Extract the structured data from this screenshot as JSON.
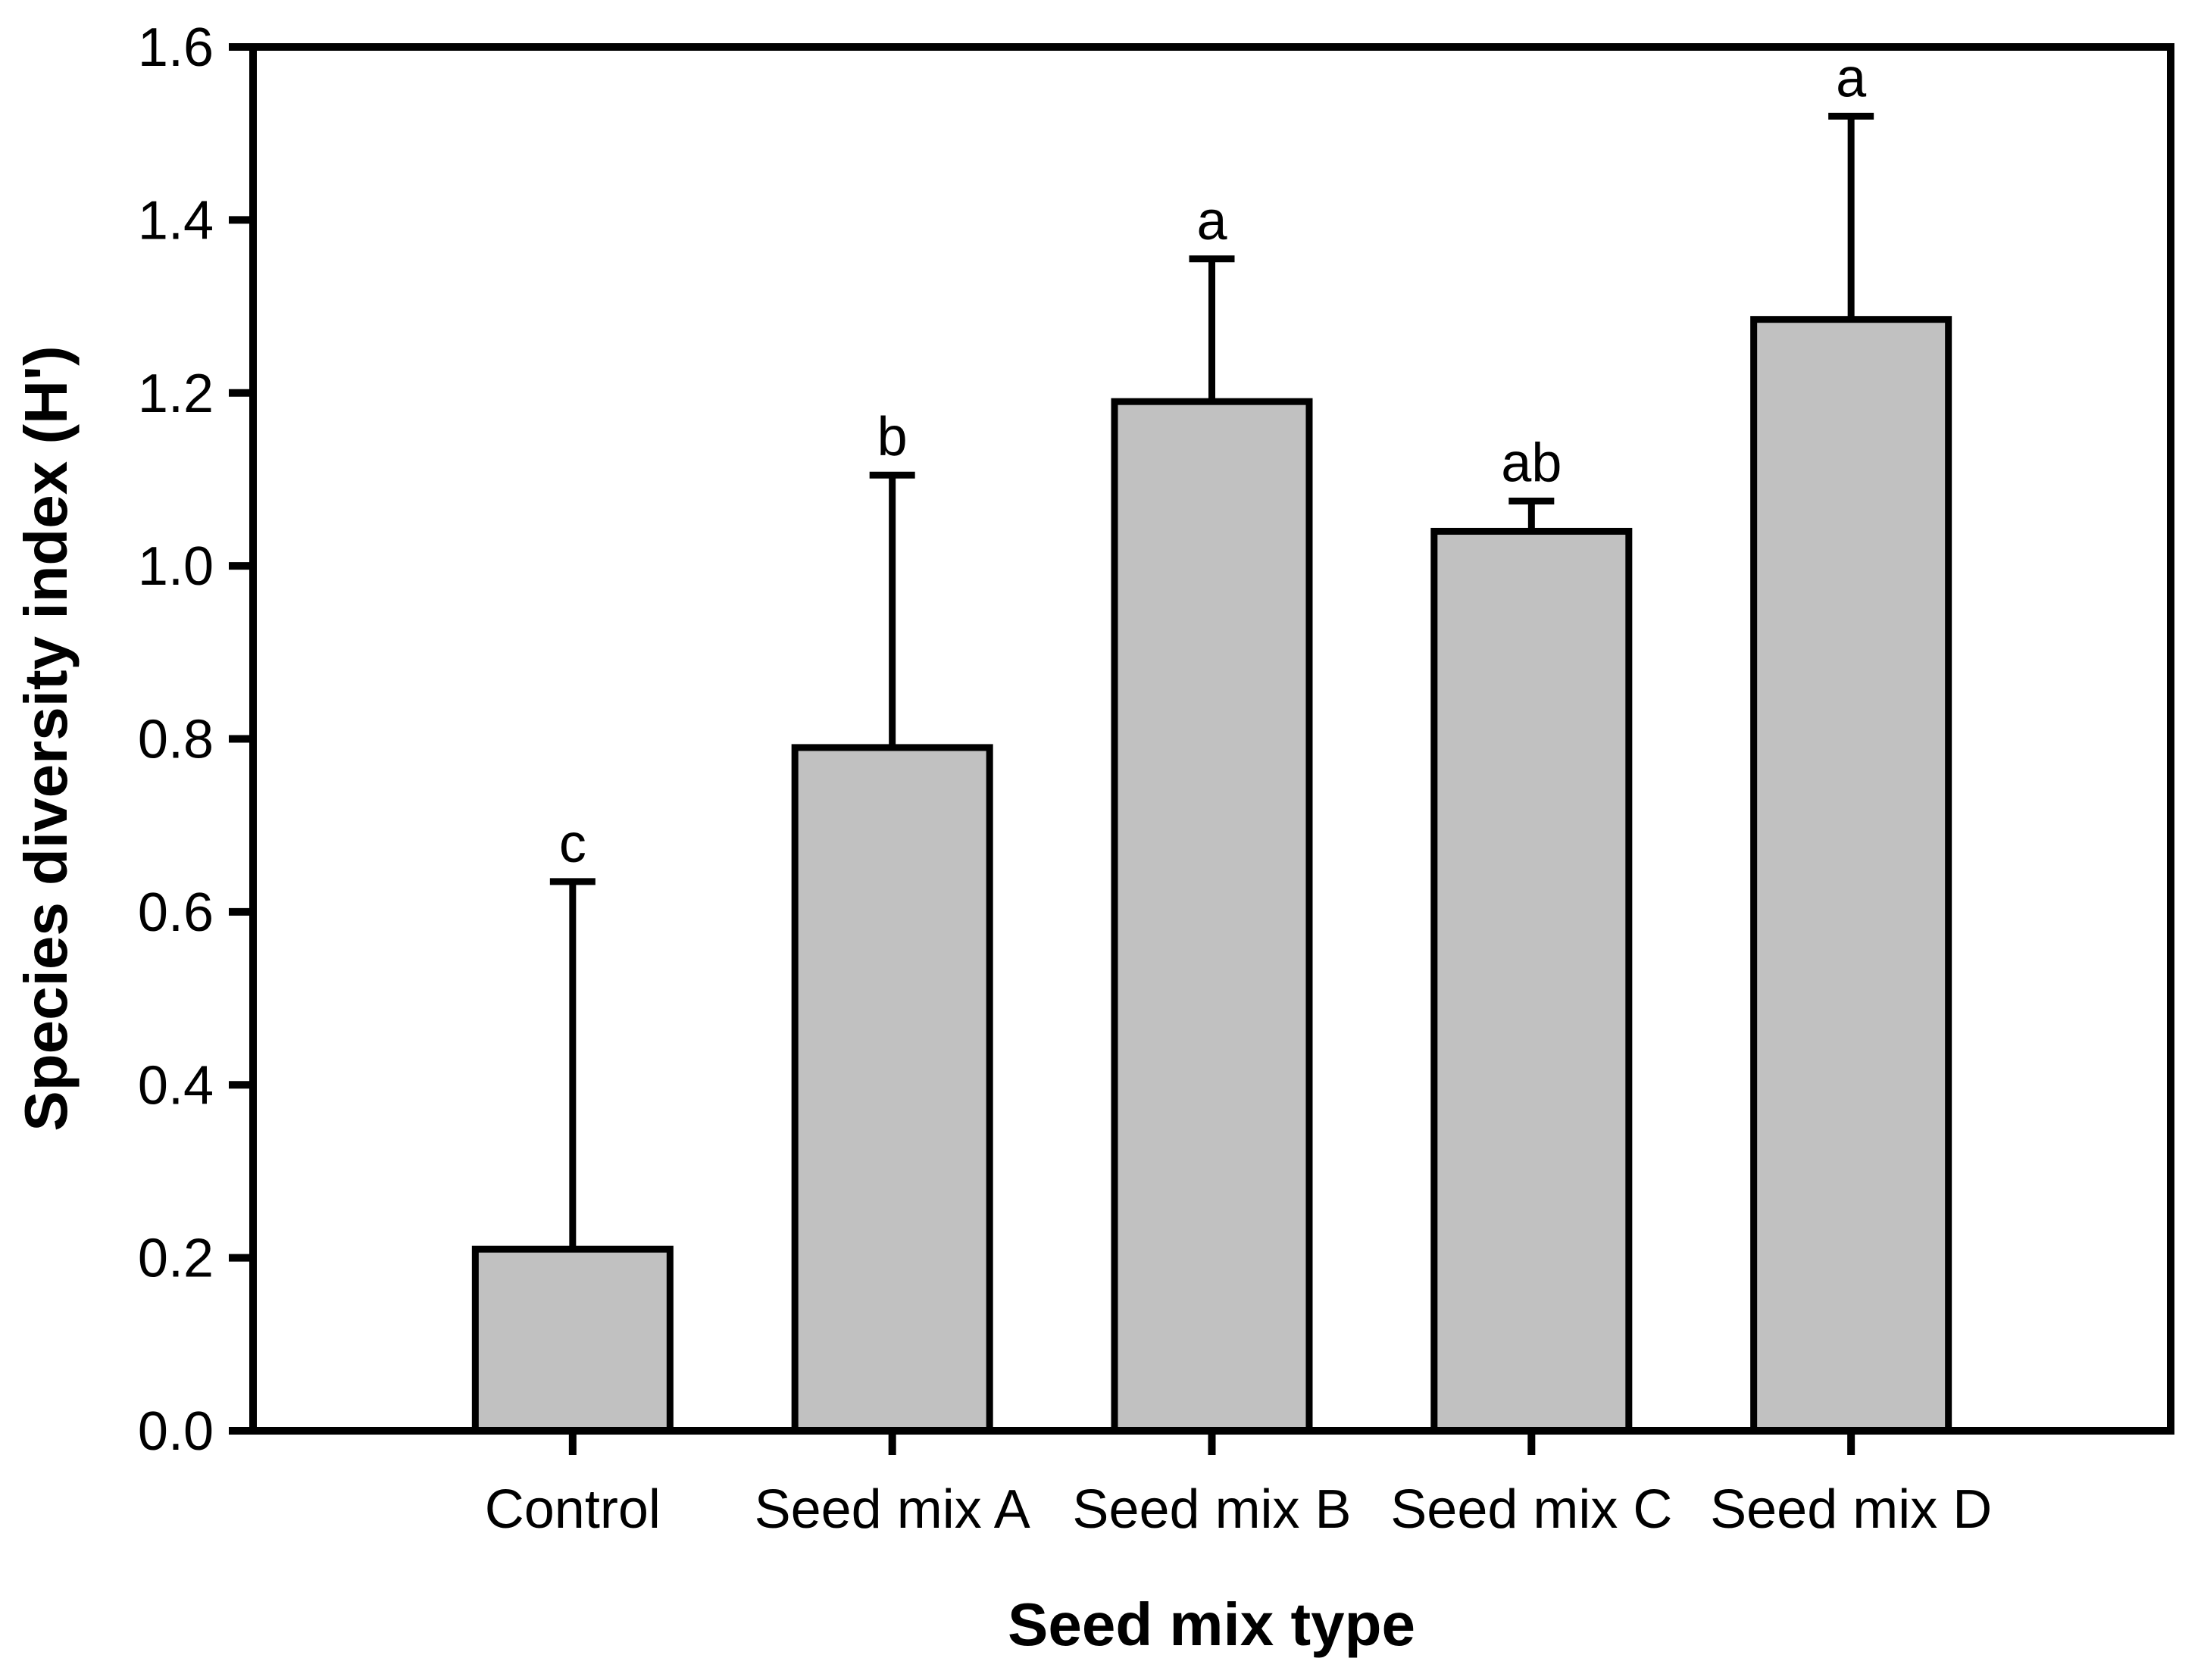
{
  "chart_data": {
    "type": "bar",
    "title": "",
    "xlabel": "Seed mix type",
    "ylabel": "Species diversity index (H')",
    "categories": [
      "Control",
      "Seed mix A",
      "Seed mix B",
      "Seed mix C",
      "Seed mix D"
    ],
    "values": [
      0.21,
      0.79,
      1.19,
      1.04,
      1.285
    ],
    "errors_plus": [
      0.425,
      0.315,
      0.165,
      0.035,
      0.235
    ],
    "error_caps_at": [
      0.635,
      1.105,
      1.355,
      1.075,
      1.52
    ],
    "significance_letters": [
      "c",
      "b",
      "a",
      "ab",
      "a"
    ],
    "ylim": [
      0.0,
      1.6
    ],
    "ytick_step": 0.2,
    "ytick_labels": [
      "0.0",
      "0.2",
      "0.4",
      "0.6",
      "0.8",
      "1.0",
      "1.2",
      "1.4",
      "1.6"
    ],
    "grid": false,
    "legend": "none",
    "plot_frame": "full-box",
    "colors": {
      "bar_fill": "#c1c1c1",
      "bar_stroke": "#000000",
      "axis": "#000000",
      "background": "#ffffff"
    }
  }
}
